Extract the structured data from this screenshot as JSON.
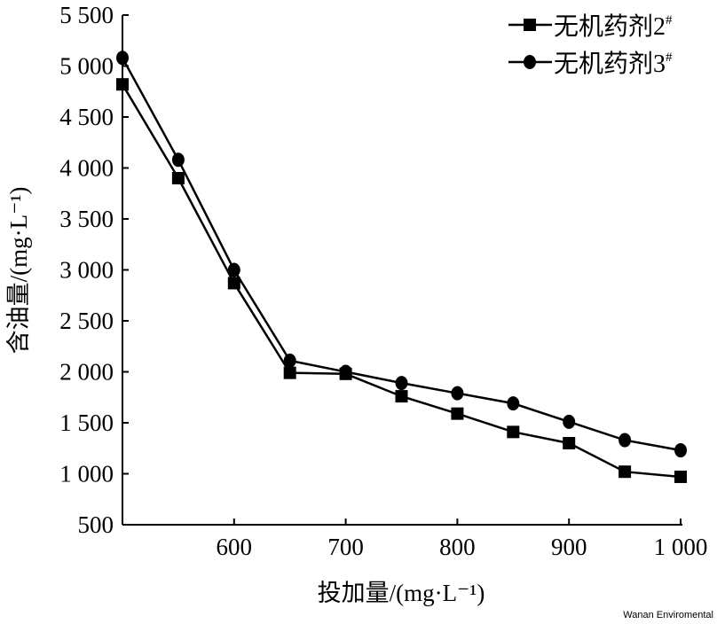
{
  "chart_data": {
    "type": "line",
    "xlabel": "投加量/(mg·L⁻¹)",
    "ylabel": "含油量/(mg·L⁻¹)",
    "xlim": [
      500,
      1000
    ],
    "ylim": [
      500,
      5500
    ],
    "x_ticks": [
      "600",
      "700",
      "800",
      "900",
      "1 000"
    ],
    "x_tick_values": [
      600,
      700,
      800,
      900,
      1000
    ],
    "y_ticks": [
      "500",
      "1 000",
      "1 500",
      "2 000",
      "2 500",
      "3 000",
      "3 500",
      "4 000",
      "4 500",
      "5 000",
      "5 500"
    ],
    "y_tick_values": [
      500,
      1000,
      1500,
      2000,
      2500,
      3000,
      3500,
      4000,
      4500,
      5000,
      5500
    ],
    "grid": false,
    "legend_position": "top-right",
    "x": [
      500,
      550,
      600,
      650,
      700,
      750,
      800,
      850,
      900,
      950,
      1000
    ],
    "series": [
      {
        "name": "无机药剂2#",
        "marker": "square",
        "color": "#000000",
        "values": [
          4820,
          3900,
          2870,
          1990,
          1980,
          1760,
          1590,
          1410,
          1300,
          1020,
          970
        ]
      },
      {
        "name": "无机药剂3#",
        "marker": "circle",
        "color": "#000000",
        "values": [
          5080,
          4080,
          3000,
          2110,
          2000,
          1890,
          1790,
          1690,
          1510,
          1330,
          1230
        ]
      }
    ]
  },
  "watermark": "Wanan Enviromental"
}
